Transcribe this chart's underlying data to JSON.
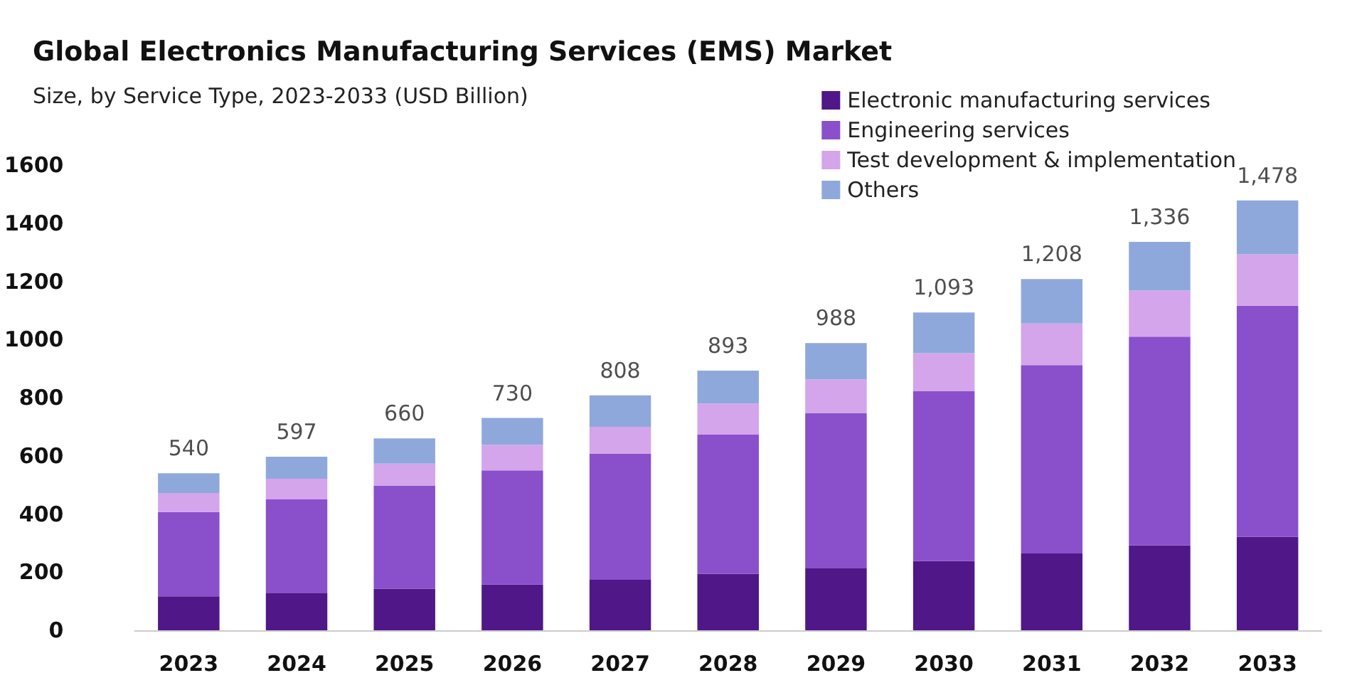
{
  "chart_data": {
    "type": "bar",
    "title": "Global Electronics Manufacturing Services (EMS) Market",
    "subtitle": "Size, by Service Type, 2023-2033 (USD Billion)",
    "categories": [
      "2023",
      "2024",
      "2025",
      "2026",
      "2027",
      "2028",
      "2029",
      "2030",
      "2031",
      "2032",
      "2033"
    ],
    "stacked": true,
    "series": [
      {
        "name": "Electronic manufacturing services",
        "color": "#4f1787",
        "values": [
          117,
          127,
          143,
          158,
          174,
          194,
          213,
          238,
          264,
          292,
          322
        ]
      },
      {
        "name": "Engineering services",
        "color": "#8a4fcb",
        "values": [
          290,
          323,
          355,
          392,
          433,
          479,
          533,
          584,
          648,
          718,
          794
        ]
      },
      {
        "name": "Test development & implementation",
        "color": "#d4a5ea",
        "values": [
          65,
          71,
          75,
          88,
          93,
          107,
          117,
          131,
          143,
          158,
          177
        ]
      },
      {
        "name": "Others",
        "color": "#8fa8dc",
        "values": [
          68,
          76,
          87,
          92,
          108,
          113,
          125,
          140,
          153,
          168,
          185
        ]
      }
    ],
    "totals": [
      "540",
      "597",
      "660",
      "730",
      "808",
      "893",
      "988",
      "1,093",
      "1,208",
      "1,336",
      "1,478"
    ],
    "ylim": [
      0,
      1600
    ],
    "yticks": [
      0,
      200,
      400,
      600,
      800,
      1000,
      1200,
      1400,
      1600
    ],
    "grid": false,
    "legend": "top right"
  }
}
